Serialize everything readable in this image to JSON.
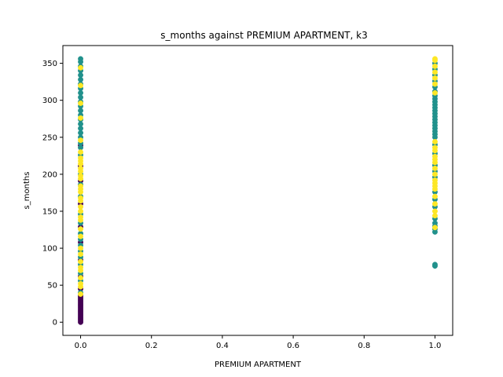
{
  "chart_data": {
    "type": "scatter",
    "title": "s_months against PREMIUM APARTMENT, k3",
    "xlabel": "PREMIUM APARTMENT",
    "ylabel": "s_months",
    "xlim": [
      -0.05,
      1.05
    ],
    "ylim": [
      -17.8,
      374
    ],
    "xticks": [
      0.0,
      0.2,
      0.4,
      0.6,
      0.8,
      1.0
    ],
    "xtick_labels": [
      "0.0",
      "0.2",
      "0.4",
      "0.6",
      "0.8",
      "1.0"
    ],
    "yticks": [
      0,
      50,
      100,
      150,
      200,
      250,
      300,
      350
    ],
    "ytick_labels": [
      "0",
      "50",
      "100",
      "150",
      "200",
      "250",
      "300",
      "350"
    ],
    "grid": false,
    "legend": false,
    "colormap": "viridis",
    "series": [
      {
        "color": "#440154",
        "points": [
          {
            "x": 0,
            "y": 0
          },
          {
            "x": 0,
            "y": 2
          },
          {
            "x": 0,
            "y": 4
          },
          {
            "x": 0,
            "y": 6
          },
          {
            "x": 0,
            "y": 8
          },
          {
            "x": 0,
            "y": 10
          },
          {
            "x": 0,
            "y": 12
          },
          {
            "x": 0,
            "y": 14
          },
          {
            "x": 0,
            "y": 16
          },
          {
            "x": 0,
            "y": 18
          },
          {
            "x": 0,
            "y": 20
          },
          {
            "x": 0,
            "y": 22
          },
          {
            "x": 0,
            "y": 24
          },
          {
            "x": 0,
            "y": 26
          },
          {
            "x": 0,
            "y": 28
          },
          {
            "x": 0,
            "y": 30
          },
          {
            "x": 0,
            "y": 32
          },
          {
            "x": 0,
            "y": 34
          },
          {
            "x": 0,
            "y": 36
          },
          {
            "x": 0,
            "y": 45
          },
          {
            "x": 0,
            "y": 62
          },
          {
            "x": 0,
            "y": 84
          },
          {
            "x": 0,
            "y": 108
          },
          {
            "x": 0,
            "y": 129
          },
          {
            "x": 0,
            "y": 160
          },
          {
            "x": 0,
            "y": 191
          },
          {
            "x": 0,
            "y": 211
          },
          {
            "x": 0,
            "y": 239
          }
        ]
      },
      {
        "color": "#21918c",
        "points": [
          {
            "x": 0,
            "y": 40
          },
          {
            "x": 0,
            "y": 56
          },
          {
            "x": 0,
            "y": 66
          },
          {
            "x": 0,
            "y": 78
          },
          {
            "x": 0,
            "y": 88
          },
          {
            "x": 0,
            "y": 96
          },
          {
            "x": 0,
            "y": 104
          },
          {
            "x": 0,
            "y": 112
          },
          {
            "x": 0,
            "y": 120
          },
          {
            "x": 0,
            "y": 134
          },
          {
            "x": 0,
            "y": 146
          },
          {
            "x": 0,
            "y": 170
          },
          {
            "x": 0,
            "y": 186
          },
          {
            "x": 0,
            "y": 200
          },
          {
            "x": 0,
            "y": 226
          },
          {
            "x": 0,
            "y": 236
          },
          {
            "x": 0,
            "y": 242
          },
          {
            "x": 0,
            "y": 250
          },
          {
            "x": 0,
            "y": 256
          },
          {
            "x": 0,
            "y": 262
          },
          {
            "x": 0,
            "y": 268
          },
          {
            "x": 0,
            "y": 274
          },
          {
            "x": 0,
            "y": 280
          },
          {
            "x": 0,
            "y": 286
          },
          {
            "x": 0,
            "y": 292
          },
          {
            "x": 0,
            "y": 298
          },
          {
            "x": 0,
            "y": 304
          },
          {
            "x": 0,
            "y": 310
          },
          {
            "x": 0,
            "y": 316
          },
          {
            "x": 0,
            "y": 322
          },
          {
            "x": 0,
            "y": 328
          },
          {
            "x": 0,
            "y": 334
          },
          {
            "x": 0,
            "y": 340
          },
          {
            "x": 0,
            "y": 346
          },
          {
            "x": 0,
            "y": 352
          },
          {
            "x": 0,
            "y": 356
          },
          {
            "x": 1,
            "y": 76
          },
          {
            "x": 1,
            "y": 78
          },
          {
            "x": 1,
            "y": 122
          },
          {
            "x": 1,
            "y": 126
          },
          {
            "x": 1,
            "y": 130
          },
          {
            "x": 1,
            "y": 134
          },
          {
            "x": 1,
            "y": 140
          },
          {
            "x": 1,
            "y": 156
          },
          {
            "x": 1,
            "y": 166
          },
          {
            "x": 1,
            "y": 176
          },
          {
            "x": 1,
            "y": 196
          },
          {
            "x": 1,
            "y": 204
          },
          {
            "x": 1,
            "y": 212
          },
          {
            "x": 1,
            "y": 228
          },
          {
            "x": 1,
            "y": 240
          },
          {
            "x": 1,
            "y": 250
          },
          {
            "x": 1,
            "y": 254
          },
          {
            "x": 1,
            "y": 258
          },
          {
            "x": 1,
            "y": 262
          },
          {
            "x": 1,
            "y": 266
          },
          {
            "x": 1,
            "y": 270
          },
          {
            "x": 1,
            "y": 274
          },
          {
            "x": 1,
            "y": 278
          },
          {
            "x": 1,
            "y": 282
          },
          {
            "x": 1,
            "y": 286
          },
          {
            "x": 1,
            "y": 290
          },
          {
            "x": 1,
            "y": 294
          },
          {
            "x": 1,
            "y": 298
          },
          {
            "x": 1,
            "y": 302
          },
          {
            "x": 1,
            "y": 306
          },
          {
            "x": 1,
            "y": 312
          },
          {
            "x": 1,
            "y": 318
          },
          {
            "x": 1,
            "y": 326
          },
          {
            "x": 1,
            "y": 334
          },
          {
            "x": 1,
            "y": 342
          },
          {
            "x": 1,
            "y": 350
          }
        ]
      },
      {
        "color": "#fde725",
        "points": [
          {
            "x": 0,
            "y": 38
          },
          {
            "x": 0,
            "y": 48
          },
          {
            "x": 0,
            "y": 52
          },
          {
            "x": 0,
            "y": 60
          },
          {
            "x": 0,
            "y": 70
          },
          {
            "x": 0,
            "y": 74
          },
          {
            "x": 0,
            "y": 82
          },
          {
            "x": 0,
            "y": 92
          },
          {
            "x": 0,
            "y": 100
          },
          {
            "x": 0,
            "y": 116
          },
          {
            "x": 0,
            "y": 126
          },
          {
            "x": 0,
            "y": 138
          },
          {
            "x": 0,
            "y": 142
          },
          {
            "x": 0,
            "y": 150
          },
          {
            "x": 0,
            "y": 156
          },
          {
            "x": 0,
            "y": 164
          },
          {
            "x": 0,
            "y": 168
          },
          {
            "x": 0,
            "y": 176
          },
          {
            "x": 0,
            "y": 180
          },
          {
            "x": 0,
            "y": 184
          },
          {
            "x": 0,
            "y": 194
          },
          {
            "x": 0,
            "y": 198
          },
          {
            "x": 0,
            "y": 204
          },
          {
            "x": 0,
            "y": 208
          },
          {
            "x": 0,
            "y": 214
          },
          {
            "x": 0,
            "y": 218
          },
          {
            "x": 0,
            "y": 222
          },
          {
            "x": 0,
            "y": 230
          },
          {
            "x": 0,
            "y": 246
          },
          {
            "x": 0,
            "y": 276
          },
          {
            "x": 0,
            "y": 296
          },
          {
            "x": 0,
            "y": 320
          },
          {
            "x": 0,
            "y": 344
          },
          {
            "x": 1,
            "y": 128
          },
          {
            "x": 1,
            "y": 144
          },
          {
            "x": 1,
            "y": 150
          },
          {
            "x": 1,
            "y": 160
          },
          {
            "x": 1,
            "y": 170
          },
          {
            "x": 1,
            "y": 180
          },
          {
            "x": 1,
            "y": 184
          },
          {
            "x": 1,
            "y": 188
          },
          {
            "x": 1,
            "y": 192
          },
          {
            "x": 1,
            "y": 200
          },
          {
            "x": 1,
            "y": 208
          },
          {
            "x": 1,
            "y": 216
          },
          {
            "x": 1,
            "y": 220
          },
          {
            "x": 1,
            "y": 224
          },
          {
            "x": 1,
            "y": 232
          },
          {
            "x": 1,
            "y": 236
          },
          {
            "x": 1,
            "y": 244
          },
          {
            "x": 1,
            "y": 310
          },
          {
            "x": 1,
            "y": 322
          },
          {
            "x": 1,
            "y": 330
          },
          {
            "x": 1,
            "y": 338
          },
          {
            "x": 1,
            "y": 346
          },
          {
            "x": 1,
            "y": 354
          },
          {
            "x": 1,
            "y": 356
          }
        ]
      }
    ]
  }
}
